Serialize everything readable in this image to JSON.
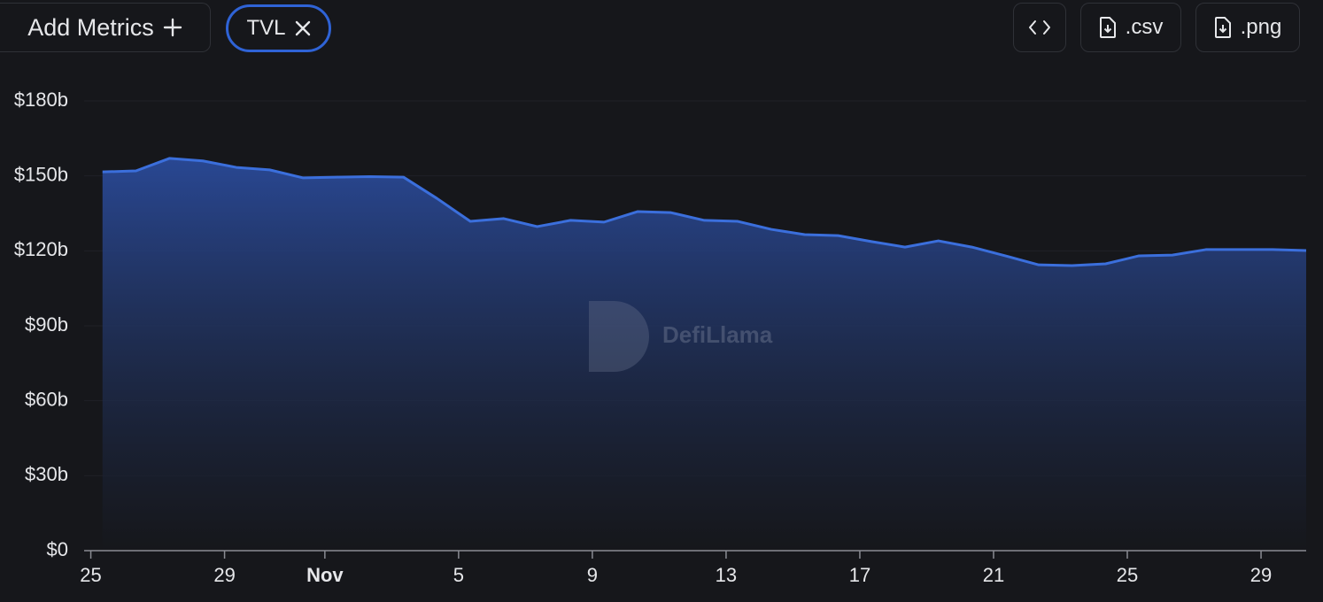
{
  "toolbar": {
    "add_metrics": "Add Metrics",
    "metric_chip": "TVL",
    "csv": ".csv",
    "png": ".png"
  },
  "watermark": "DefiLlama",
  "chart_data": {
    "type": "area",
    "color": "#3b6fdc",
    "grid": true,
    "x": [
      0.35,
      1.35,
      2.35,
      3.35,
      4.35,
      5.35,
      6.35,
      7.35,
      8.35,
      9.35,
      10.35,
      11.35,
      12.35,
      13.35,
      14.35,
      15.35,
      16.35,
      17.35,
      18.35,
      19.35,
      20.35,
      21.35,
      22.35,
      23.35,
      24.35,
      25.35,
      26.35,
      27.35,
      28.35,
      29.35,
      30.35,
      31.35,
      32.35,
      33.35,
      34.35,
      35.35,
      36.35
    ],
    "series": [
      {
        "name": "TVL",
        "color": "#3b6fdc",
        "values": [
          151.6,
          152,
          157,
          156,
          153.4,
          152.4,
          149.2,
          149.5,
          149.7,
          149.5,
          141,
          131.8,
          132.9,
          129.7,
          132.2,
          131.5,
          135.7,
          135.3,
          132.2,
          131.8,
          128.6,
          126.5,
          126.1,
          123.7,
          121.5,
          124,
          121.5,
          118,
          114.4,
          114.1,
          114.8,
          118,
          118.3,
          120.5,
          120.5,
          120.5,
          120.1
        ]
      }
    ],
    "xlim": [
      -0.2,
      36.35
    ],
    "xticks": [
      {
        "value": 0,
        "label": "25"
      },
      {
        "value": 4,
        "label": "29"
      },
      {
        "value": 7,
        "label": "Nov"
      },
      {
        "value": 11,
        "label": "5"
      },
      {
        "value": 15,
        "label": "9"
      },
      {
        "value": 19,
        "label": "13"
      },
      {
        "value": 23,
        "label": "17"
      },
      {
        "value": 27,
        "label": "21"
      },
      {
        "value": 31,
        "label": "25"
      },
      {
        "value": 35,
        "label": "29"
      }
    ],
    "ylim": [
      0,
      180
    ],
    "yticks": [
      {
        "value": 0,
        "label": "$0"
      },
      {
        "value": 30,
        "label": "$30b"
      },
      {
        "value": 60,
        "label": "$60b"
      },
      {
        "value": 90,
        "label": "$90b"
      },
      {
        "value": 120,
        "label": "$120b"
      },
      {
        "value": 150,
        "label": "$150b"
      },
      {
        "value": 180,
        "label": "$180b"
      }
    ]
  }
}
